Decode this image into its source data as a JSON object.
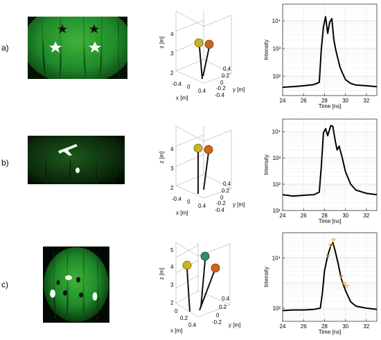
{
  "rows": [
    {
      "label": "a)"
    },
    {
      "label": "b)"
    },
    {
      "label": "c)"
    }
  ],
  "axis3d": {
    "z_label": "z [m]",
    "x_label": "x [m]",
    "y_label": "y [m]",
    "rows": [
      {
        "z_ticks": [
          "4",
          "3",
          "2"
        ],
        "x_ticks": [
          "-0.4",
          "0",
          "0.4"
        ],
        "y_ticks": [
          "0.4",
          "0.2",
          "0",
          "-0.2",
          "-0.4"
        ]
      },
      {
        "z_ticks": [
          "4",
          "3",
          "2"
        ],
        "x_ticks": [
          "-0.4",
          "0",
          "0.4"
        ],
        "y_ticks": [
          "0.4",
          "0.2",
          "0",
          "-0.2",
          "-0.4"
        ]
      },
      {
        "z_ticks": [
          "5",
          "4",
          "3",
          "2"
        ],
        "x_ticks": [
          "0",
          "0.2",
          "0.4"
        ],
        "y_ticks": [
          "0.4",
          "0.2",
          "0",
          "-0.2"
        ]
      }
    ]
  },
  "colors": {
    "scene_green": "#1f8a2a",
    "ball_yellow": "#c9b421",
    "ball_orange": "#d0651a",
    "ball_teal": "#2f8f6a",
    "marker_orange": "#f0a020"
  },
  "chart_data": [
    {
      "type": "line",
      "xlabel": "Time [ns]",
      "ylabel": "Intensity",
      "xlim": [
        24,
        33
      ],
      "ylim": [
        20,
        40000
      ],
      "log_y": true,
      "grid": true,
      "x_ticks": [
        24,
        26,
        28,
        30,
        32
      ],
      "y_ticks": [
        {
          "v": 100,
          "t": "10²"
        },
        {
          "v": 1000,
          "t": "10³"
        },
        {
          "v": 10000,
          "t": "10⁴"
        }
      ],
      "series": [
        {
          "x": [
            24,
            25,
            26,
            27,
            27.5,
            27.7,
            27.9,
            28.1,
            28.3,
            28.5,
            28.7,
            28.9,
            29.1,
            29.3,
            29.5,
            30,
            30.5,
            31,
            32,
            33
          ],
          "y": [
            40,
            42,
            45,
            50,
            60,
            1000,
            6000,
            14000,
            3500,
            9000,
            12000,
            2000,
            800,
            400,
            200,
            75,
            55,
            48,
            45,
            42
          ]
        }
      ]
    },
    {
      "type": "line",
      "xlabel": "Time [ns]",
      "ylabel": "Intensity",
      "xlim": [
        24,
        33
      ],
      "ylim": [
        10,
        30000
      ],
      "log_y": true,
      "grid": true,
      "x_ticks": [
        24,
        26,
        28,
        30,
        32
      ],
      "y_ticks": [
        {
          "v": 10,
          "t": "10¹"
        },
        {
          "v": 100,
          "t": "10²"
        },
        {
          "v": 1000,
          "t": "10³"
        },
        {
          "v": 10000,
          "t": "10⁴"
        }
      ],
      "series": [
        {
          "x": [
            24,
            25,
            26,
            27,
            27.5,
            27.7,
            27.9,
            28.1,
            28.3,
            28.6,
            28.8,
            29,
            29.2,
            29.4,
            29.7,
            30,
            30.5,
            31,
            32,
            33
          ],
          "y": [
            40,
            35,
            38,
            40,
            50,
            500,
            9000,
            13000,
            7000,
            17000,
            16000,
            5000,
            2000,
            2800,
            1000,
            300,
            100,
            60,
            45,
            40
          ]
        }
      ]
    },
    {
      "type": "line",
      "xlabel": "Time [ns]",
      "ylabel": "Intensity",
      "xlim": [
        24,
        33
      ],
      "ylim": [
        30,
        100000
      ],
      "log_y": true,
      "grid": true,
      "x_ticks": [
        24,
        26,
        28,
        30,
        32
      ],
      "y_ticks": [
        {
          "v": 100,
          "t": "10²"
        },
        {
          "v": 10000,
          "t": "10⁴"
        }
      ],
      "series": [
        {
          "x": [
            24,
            25,
            26,
            27,
            27.6,
            27.8,
            28,
            28.3,
            28.6,
            28.8,
            29,
            29.3,
            29.6,
            30,
            30.5,
            31,
            32,
            33
          ],
          "y": [
            80,
            85,
            85,
            90,
            100,
            400,
            3000,
            12000,
            30000,
            40000,
            20000,
            6000,
            1500,
            500,
            180,
            120,
            100,
            90
          ]
        }
      ],
      "markers": {
        "x": [
          28.35,
          28.6,
          28.85,
          29.6,
          29.9,
          30.1
        ],
        "y": [
          11000,
          30000,
          48000,
          1700,
          900,
          700
        ]
      }
    }
  ]
}
